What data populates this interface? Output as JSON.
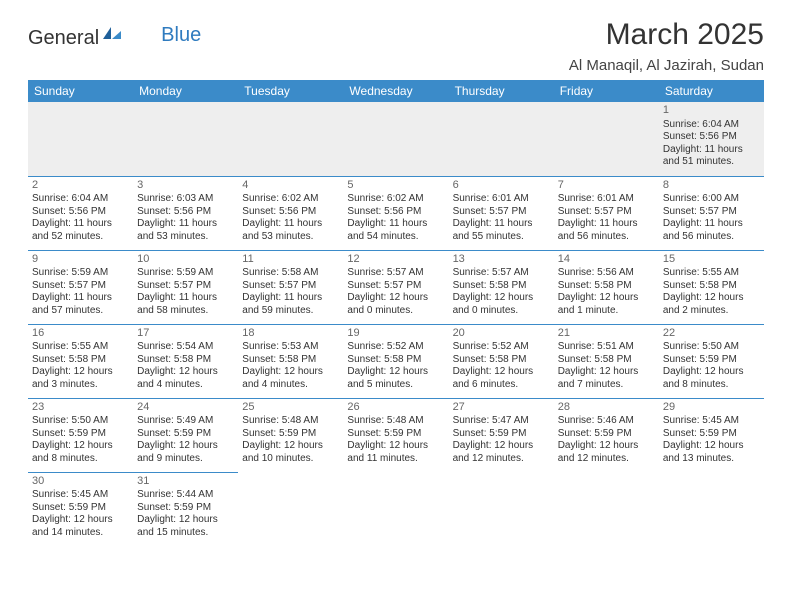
{
  "brand": {
    "part1": "General",
    "part2": "Blue"
  },
  "title": "March 2025",
  "location": "Al Manaqil, Al Jazirah, Sudan",
  "header_bg": "#3b8bc9",
  "weekdays": [
    "Sunday",
    "Monday",
    "Tuesday",
    "Wednesday",
    "Thursday",
    "Friday",
    "Saturday"
  ],
  "weeks": [
    [
      null,
      null,
      null,
      null,
      null,
      null,
      {
        "n": "1",
        "sr": "6:04 AM",
        "ss": "5:56 PM",
        "dl": "11 hours and 51 minutes."
      }
    ],
    [
      {
        "n": "2",
        "sr": "6:04 AM",
        "ss": "5:56 PM",
        "dl": "11 hours and 52 minutes."
      },
      {
        "n": "3",
        "sr": "6:03 AM",
        "ss": "5:56 PM",
        "dl": "11 hours and 53 minutes."
      },
      {
        "n": "4",
        "sr": "6:02 AM",
        "ss": "5:56 PM",
        "dl": "11 hours and 53 minutes."
      },
      {
        "n": "5",
        "sr": "6:02 AM",
        "ss": "5:56 PM",
        "dl": "11 hours and 54 minutes."
      },
      {
        "n": "6",
        "sr": "6:01 AM",
        "ss": "5:57 PM",
        "dl": "11 hours and 55 minutes."
      },
      {
        "n": "7",
        "sr": "6:01 AM",
        "ss": "5:57 PM",
        "dl": "11 hours and 56 minutes."
      },
      {
        "n": "8",
        "sr": "6:00 AM",
        "ss": "5:57 PM",
        "dl": "11 hours and 56 minutes."
      }
    ],
    [
      {
        "n": "9",
        "sr": "5:59 AM",
        "ss": "5:57 PM",
        "dl": "11 hours and 57 minutes."
      },
      {
        "n": "10",
        "sr": "5:59 AM",
        "ss": "5:57 PM",
        "dl": "11 hours and 58 minutes."
      },
      {
        "n": "11",
        "sr": "5:58 AM",
        "ss": "5:57 PM",
        "dl": "11 hours and 59 minutes."
      },
      {
        "n": "12",
        "sr": "5:57 AM",
        "ss": "5:57 PM",
        "dl": "12 hours and 0 minutes."
      },
      {
        "n": "13",
        "sr": "5:57 AM",
        "ss": "5:58 PM",
        "dl": "12 hours and 0 minutes."
      },
      {
        "n": "14",
        "sr": "5:56 AM",
        "ss": "5:58 PM",
        "dl": "12 hours and 1 minute."
      },
      {
        "n": "15",
        "sr": "5:55 AM",
        "ss": "5:58 PM",
        "dl": "12 hours and 2 minutes."
      }
    ],
    [
      {
        "n": "16",
        "sr": "5:55 AM",
        "ss": "5:58 PM",
        "dl": "12 hours and 3 minutes."
      },
      {
        "n": "17",
        "sr": "5:54 AM",
        "ss": "5:58 PM",
        "dl": "12 hours and 4 minutes."
      },
      {
        "n": "18",
        "sr": "5:53 AM",
        "ss": "5:58 PM",
        "dl": "12 hours and 4 minutes."
      },
      {
        "n": "19",
        "sr": "5:52 AM",
        "ss": "5:58 PM",
        "dl": "12 hours and 5 minutes."
      },
      {
        "n": "20",
        "sr": "5:52 AM",
        "ss": "5:58 PM",
        "dl": "12 hours and 6 minutes."
      },
      {
        "n": "21",
        "sr": "5:51 AM",
        "ss": "5:58 PM",
        "dl": "12 hours and 7 minutes."
      },
      {
        "n": "22",
        "sr": "5:50 AM",
        "ss": "5:59 PM",
        "dl": "12 hours and 8 minutes."
      }
    ],
    [
      {
        "n": "23",
        "sr": "5:50 AM",
        "ss": "5:59 PM",
        "dl": "12 hours and 8 minutes."
      },
      {
        "n": "24",
        "sr": "5:49 AM",
        "ss": "5:59 PM",
        "dl": "12 hours and 9 minutes."
      },
      {
        "n": "25",
        "sr": "5:48 AM",
        "ss": "5:59 PM",
        "dl": "12 hours and 10 minutes."
      },
      {
        "n": "26",
        "sr": "5:48 AM",
        "ss": "5:59 PM",
        "dl": "12 hours and 11 minutes."
      },
      {
        "n": "27",
        "sr": "5:47 AM",
        "ss": "5:59 PM",
        "dl": "12 hours and 12 minutes."
      },
      {
        "n": "28",
        "sr": "5:46 AM",
        "ss": "5:59 PM",
        "dl": "12 hours and 12 minutes."
      },
      {
        "n": "29",
        "sr": "5:45 AM",
        "ss": "5:59 PM",
        "dl": "12 hours and 13 minutes."
      }
    ],
    [
      {
        "n": "30",
        "sr": "5:45 AM",
        "ss": "5:59 PM",
        "dl": "12 hours and 14 minutes."
      },
      {
        "n": "31",
        "sr": "5:44 AM",
        "ss": "5:59 PM",
        "dl": "12 hours and 15 minutes."
      },
      null,
      null,
      null,
      null,
      null
    ]
  ],
  "labels": {
    "sunrise": "Sunrise: ",
    "sunset": "Sunset: ",
    "daylight": "Daylight: "
  }
}
